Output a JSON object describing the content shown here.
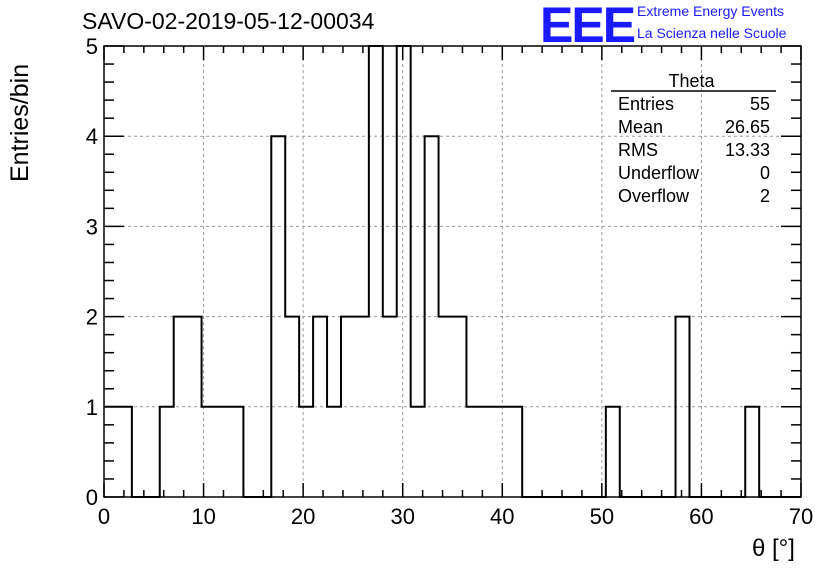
{
  "header": {
    "title": "SAVO-02-2019-05-12-00034",
    "logo_text": "EEE",
    "logo_line1": "Extreme Energy Events",
    "logo_line2": "La Scienza nelle Scuole"
  },
  "stats_box": {
    "title": "Theta",
    "rows": [
      {
        "label": "Entries",
        "value": "55"
      },
      {
        "label": "Mean",
        "value": "26.65"
      },
      {
        "label": "RMS",
        "value": "13.33"
      },
      {
        "label": "Underflow",
        "value": "0"
      },
      {
        "label": "Overflow",
        "value": "2"
      }
    ]
  },
  "chart_data": {
    "type": "bar",
    "histogram": true,
    "title": "SAVO-02-2019-05-12-00034",
    "xlabel": "θ [°]",
    "ylabel": "Entries/bin",
    "xlim": [
      0,
      70
    ],
    "ylim": [
      0,
      5
    ],
    "bin_width": 1.4,
    "x_ticks": [
      "0",
      "10",
      "20",
      "30",
      "40",
      "50",
      "60",
      "70"
    ],
    "y_ticks": [
      "0",
      "1",
      "2",
      "3",
      "4",
      "5"
    ],
    "grid": true,
    "bin_edges": [
      0,
      1.4,
      2.8,
      4.2,
      5.6,
      7.0,
      8.4,
      9.8,
      11.2,
      12.6,
      14.0,
      15.4,
      16.8,
      18.2,
      19.6,
      21.0,
      22.4,
      23.8,
      25.2,
      26.6,
      28.0,
      29.4,
      30.8,
      32.2,
      33.6,
      35.0,
      36.4,
      37.8,
      39.2,
      40.6,
      42.0,
      43.4,
      44.8,
      46.2,
      47.6,
      49.0,
      50.4,
      51.8,
      53.2,
      54.6,
      56.0,
      57.4,
      58.8,
      60.2,
      61.6,
      63.0,
      64.4,
      65.8,
      67.2,
      68.6,
      70.0
    ],
    "values": [
      1,
      1,
      0,
      0,
      1,
      2,
      2,
      1,
      1,
      1,
      0,
      0,
      4,
      2,
      1,
      2,
      1,
      2,
      2,
      5,
      2,
      5,
      1,
      4,
      2,
      2,
      1,
      1,
      1,
      1,
      0,
      0,
      0,
      0,
      0,
      0,
      1,
      0,
      0,
      0,
      0,
      2,
      0,
      0,
      0,
      0,
      1,
      0,
      0,
      0
    ]
  },
  "colors": {
    "line": "#000000",
    "grid": "#999999",
    "logo": "#1a1aff"
  }
}
